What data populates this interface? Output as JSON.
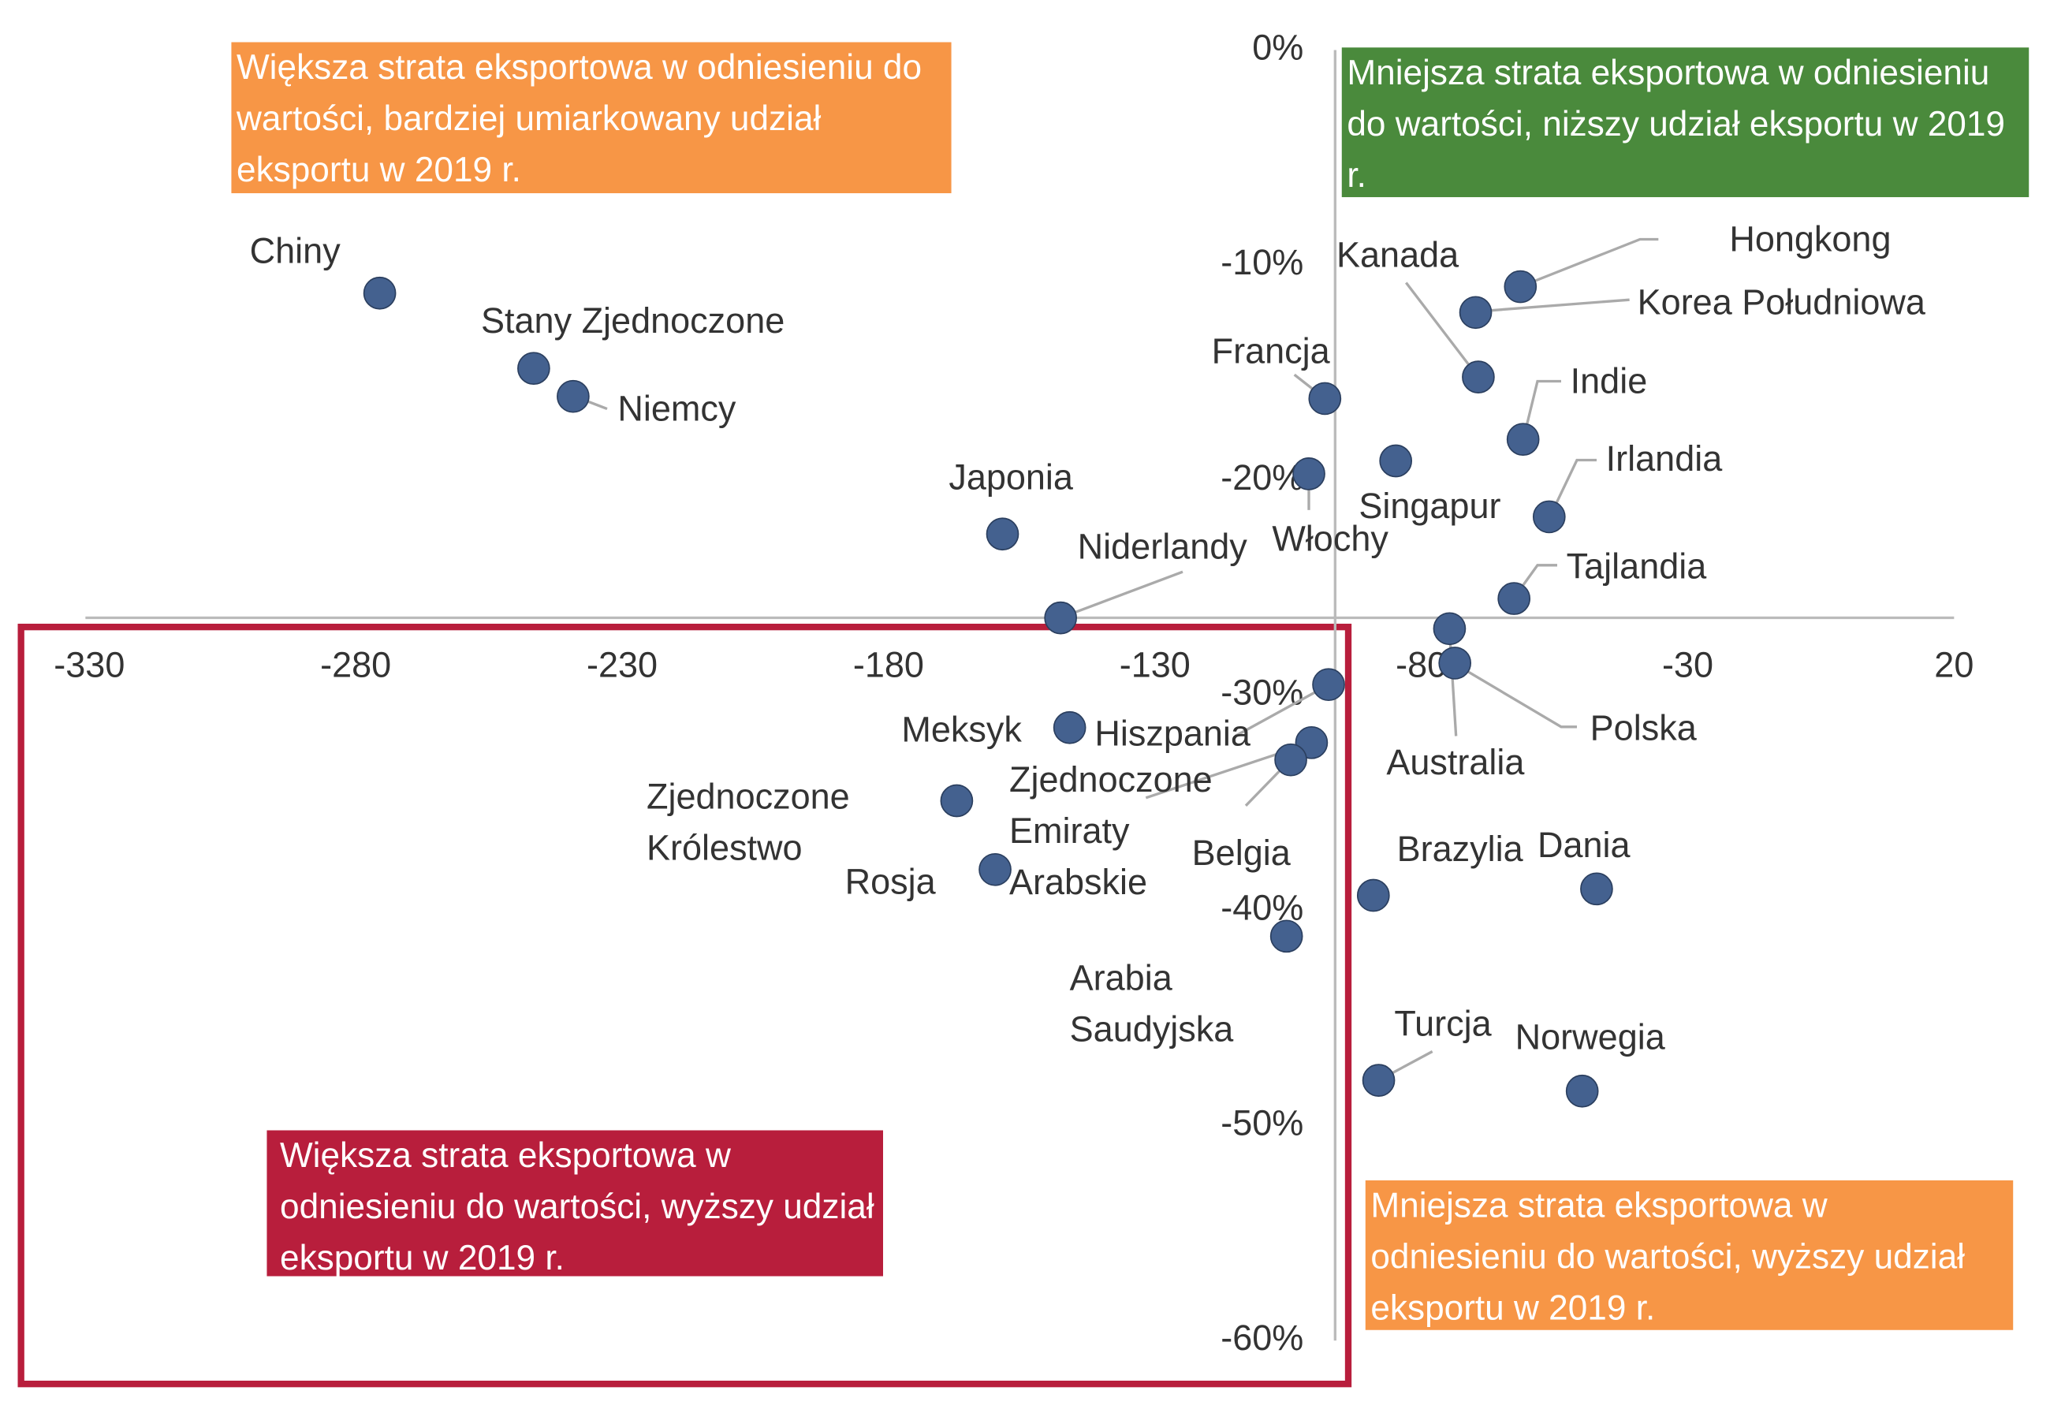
{
  "chart_data": {
    "type": "scatter",
    "xlim": [
      -330,
      20
    ],
    "xticks": [
      -330,
      -280,
      -230,
      -180,
      -130,
      -80,
      -30,
      20
    ],
    "ylim": [
      -60,
      0
    ],
    "yticks": [
      {
        "value": 0,
        "label": "0%"
      },
      {
        "value": -10,
        "label": "-10%"
      },
      {
        "value": -20,
        "label": "-20%"
      },
      {
        "value": -30,
        "label": "-30%"
      },
      {
        "value": -40,
        "label": "-40%"
      },
      {
        "value": -50,
        "label": "-50%"
      },
      {
        "value": -60,
        "label": "-60%"
      }
    ],
    "color": "#44618f",
    "points": [
      {
        "name": "Chiny",
        "x": -275.5,
        "y": -11.3
      },
      {
        "name": "Stany Zjednoczone",
        "x": -246.6,
        "y": -14.8
      },
      {
        "name": "Niemcy",
        "x": -239.2,
        "y": -16.1
      },
      {
        "name": "Japonia",
        "x": -158.6,
        "y": -22.5
      },
      {
        "name": "Niderlandy",
        "x": -147.7,
        "y": -26.4
      },
      {
        "name": "Francja",
        "x": -98.1,
        "y": -16.2
      },
      {
        "name": "Włochy",
        "x": -101.1,
        "y": -19.7
      },
      {
        "name": "Singapur",
        "x": -84.8,
        "y": -19.1
      },
      {
        "name": "Kanada",
        "x": -69.3,
        "y": -15.2
      },
      {
        "name": "Hongkong",
        "x": -61.4,
        "y": -11.0
      },
      {
        "name": "Korea Południowa",
        "x": -69.8,
        "y": -12.2
      },
      {
        "name": "Indie",
        "x": -60.9,
        "y": -18.1
      },
      {
        "name": "Irlandia",
        "x": -56.0,
        "y": -21.7
      },
      {
        "name": "Tajlandia",
        "x": -62.6,
        "y": -25.5
      },
      {
        "name": "Australia",
        "x": -74.7,
        "y": -26.9
      },
      {
        "name": "Polska",
        "x": -73.7,
        "y": -28.5
      },
      {
        "name": "Hiszpania",
        "x": -97.4,
        "y": -29.5
      },
      {
        "name": "Meksyk",
        "x": -146.0,
        "y": -31.5
      },
      {
        "name": "Zjednoczone Emiraty Arabskie",
        "x": -100.6,
        "y": -32.2
      },
      {
        "name": "Belgia",
        "x": -104.5,
        "y": -33.0
      },
      {
        "name": "Zjednoczone Królestwo",
        "x": -167.2,
        "y": -34.9
      },
      {
        "name": "Rosja",
        "x": -160.0,
        "y": -38.1
      },
      {
        "name": "Arabia Saudyjska",
        "x": -105.3,
        "y": -41.2
      },
      {
        "name": "Brazylia",
        "x": -89.0,
        "y": -39.3
      },
      {
        "name": "Dania",
        "x": -47.1,
        "y": -39.0
      },
      {
        "name": "Turcja",
        "x": -88.0,
        "y": -47.9
      },
      {
        "name": "Norwegia",
        "x": -49.8,
        "y": -48.4
      }
    ],
    "annotations": [
      "Większa strata eksportowa w odniesieniu do wartości, bardziej umiarkowany udział eksportu w 2019 r.",
      "Mniejsza strata eksportowa w odniesieniu do wartości, niższy udział eksportu w 2019 r.",
      "Większa strata eksportowa w odniesieniu do wartości, wyższy udział eksportu w 2019 r.",
      "Mniejsza strata eksportowa w odniesieniu do wartości, wyższy udział eksportu w 2019 r."
    ]
  }
}
